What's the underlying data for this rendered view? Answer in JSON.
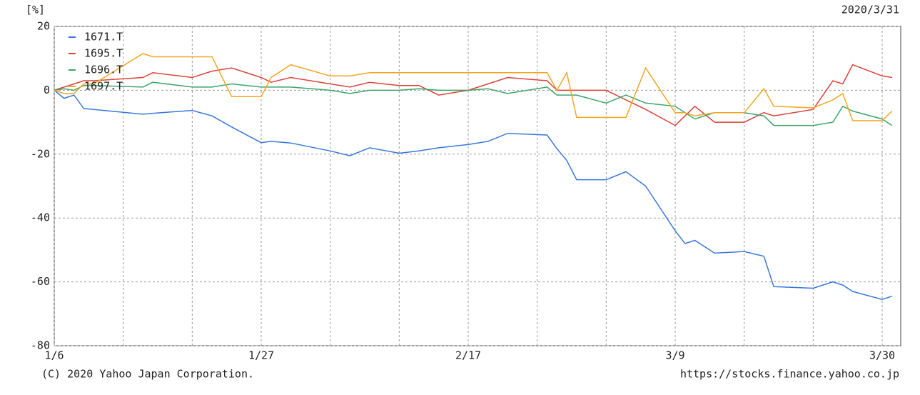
{
  "chart_data": {
    "type": "line",
    "y_label": "[%]",
    "date": "2020/3/31",
    "copyright": "(C) 2020 Yahoo Japan Corporation.",
    "source": "https://stocks.finance.yahoo.co.jp",
    "x": [
      "1/6",
      "1/7",
      "1/8",
      "1/9",
      "1/10",
      "1/15",
      "1/16",
      "1/20",
      "1/22",
      "1/24",
      "1/27",
      "1/28",
      "1/30",
      "2/3",
      "2/5",
      "2/7",
      "2/10",
      "2/12",
      "2/14",
      "2/17",
      "2/19",
      "2/21",
      "2/25",
      "2/26",
      "2/27",
      "2/28",
      "3/2",
      "3/4",
      "3/6",
      "3/9",
      "3/10",
      "3/11",
      "3/13",
      "3/16",
      "3/18",
      "3/19",
      "3/23",
      "3/25",
      "3/26",
      "3/27",
      "3/30",
      "3/31"
    ],
    "xticks": [
      "1/6",
      "1/27",
      "2/17",
      "3/9",
      "3/30"
    ],
    "ylim": [
      -80,
      20
    ],
    "yticks": [
      20,
      0,
      -20,
      -40,
      -60,
      -80
    ],
    "grid": true,
    "legend": "upper left",
    "series": [
      {
        "name": "1671.T",
        "color": "#3a78d8",
        "values": [
          0,
          -2.5,
          -1.5,
          -5.7,
          -6,
          -7.5,
          -7.2,
          -6.3,
          -8,
          -11.5,
          -16.4,
          -16,
          -16.5,
          -19,
          -20.5,
          -18,
          -19.7,
          -19,
          -18,
          -17,
          -16,
          -13.5,
          -14,
          -18.3,
          -22,
          -28,
          -28,
          -25.5,
          -30,
          -44,
          -48,
          -47,
          -51,
          -50.5,
          -52,
          -61.5,
          -62,
          -60,
          -61,
          -63,
          -65.5,
          -64.5
        ]
      },
      {
        "name": "1695.T",
        "color": "#d9433a",
        "values": [
          0,
          1,
          2,
          3,
          3,
          4,
          5.5,
          4,
          6,
          7,
          4,
          2.5,
          4,
          2,
          1,
          2.5,
          1.5,
          1.5,
          -1.5,
          0,
          2,
          4,
          3,
          0,
          0,
          0,
          0,
          -3,
          -6,
          -11,
          -8,
          -5,
          -10,
          -10,
          -7,
          -8,
          -6,
          3,
          2,
          8,
          4.5,
          4
        ]
      },
      {
        "name": "1696.T",
        "color": "#3fa36a",
        "values": [
          0,
          0.5,
          0,
          1.5,
          1.5,
          1,
          2.5,
          1,
          1,
          2,
          1,
          1,
          1,
          0,
          -1,
          0,
          0,
          0.5,
          0,
          0,
          0.5,
          -1,
          1,
          -1.5,
          -1.5,
          -1.5,
          -4,
          -1.5,
          -4,
          -5,
          -7,
          -9,
          -7,
          -7,
          -8,
          -11,
          -11,
          -10,
          -5,
          -6.5,
          -9,
          -11
        ]
      },
      {
        "name": "1697.T",
        "color": "#f4a623",
        "values": [
          0,
          -1,
          -1,
          2,
          2,
          11.5,
          10.5,
          10.5,
          10.5,
          -2,
          -2,
          4,
          8,
          4.5,
          4.5,
          5.5,
          5.5,
          5.5,
          5.5,
          5.5,
          5.5,
          5.5,
          5.5,
          0,
          5.5,
          -8.5,
          -8.5,
          -8.5,
          7,
          -7,
          -7,
          -8,
          -7,
          -7,
          0.5,
          -5,
          -5.5,
          -3,
          -1,
          -9.5,
          -9.5,
          -6.5
        ]
      }
    ]
  }
}
